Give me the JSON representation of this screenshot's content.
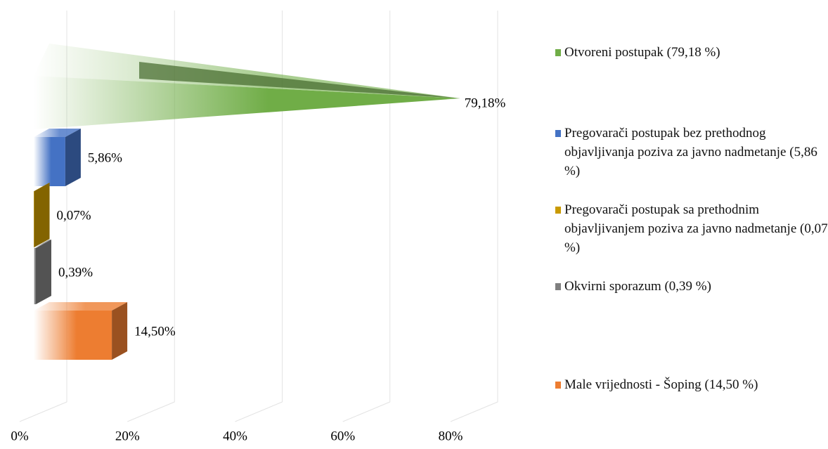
{
  "chart_data": {
    "type": "bar3d",
    "categories": [
      "Otvoreni postupak (79,18 %)",
      "Pregovarači postupak bez prethodnog objavljivanja poziva za javno nadmetanje (5,86 %)",
      "Pregovarači postupak sa prethodnim objavljivanjem poziva za javno nadmetanje (0,07 %)",
      "Okvirni sporazum (0,39 %)",
      "Male vrijednosti - Šoping (14,50 %)"
    ],
    "values": [
      79.18,
      5.86,
      0.07,
      0.39,
      14.5
    ],
    "value_labels": [
      "79,18%",
      "5,86%",
      "0,07%",
      "0,39%",
      "14,50%"
    ],
    "colors": [
      "#70ad47",
      "#4472c4",
      "#c99a00",
      "#7f7f7f",
      "#ed7d31"
    ],
    "xlim": [
      0,
      80
    ],
    "xticks": [
      {
        "value": 0,
        "label": "0%"
      },
      {
        "value": 20,
        "label": "20%"
      },
      {
        "value": 40,
        "label": "40%"
      },
      {
        "value": 60,
        "label": "60%"
      },
      {
        "value": 80,
        "label": "80%"
      }
    ],
    "grid": true,
    "legend": "right"
  }
}
